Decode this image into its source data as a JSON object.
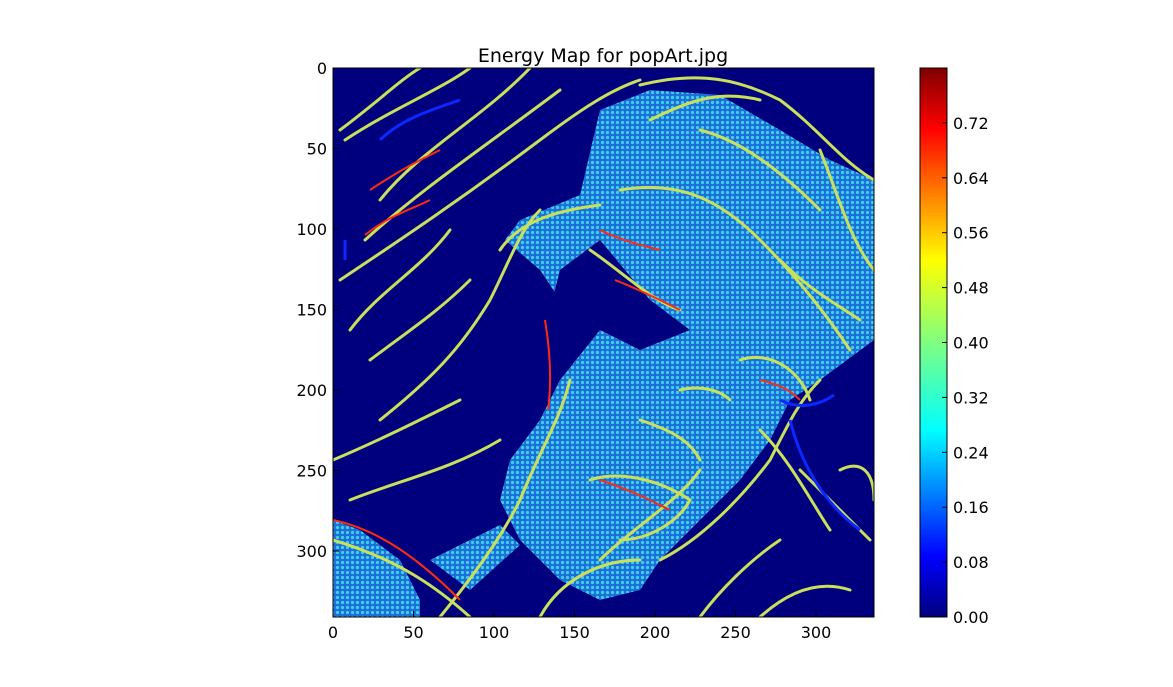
{
  "chart_data": [
    {
      "type": "heatmap",
      "title": "Energy Map for popArt.jpg",
      "xlabel": "",
      "ylabel": "",
      "colormap": "jet",
      "xlim": [
        0,
        336
      ],
      "ylim": [
        341,
        0
      ],
      "x_ticks": [
        0,
        50,
        100,
        150,
        200,
        250,
        300
      ],
      "y_ticks": [
        0,
        50,
        100,
        150,
        200,
        250,
        300
      ],
      "grid": false,
      "notes": "Image shows an energy map of a pop-art portrait (woman's face with flowing hair): dark blue background, yellow-green/red outline contours, cyan/light-blue dotted halftone regions over the face."
    },
    {
      "type": "colorbar",
      "vmin": 0.0,
      "vmax": 0.8,
      "ticks": [
        "0.00",
        "0.08",
        "0.16",
        "0.24",
        "0.32",
        "0.40",
        "0.48",
        "0.56",
        "0.64",
        "0.72"
      ],
      "tick_values": [
        0.0,
        0.08,
        0.16,
        0.24,
        0.32,
        0.4,
        0.48,
        0.56,
        0.64,
        0.72
      ]
    }
  ],
  "colors": {
    "background": "#00007f",
    "outline": "#c8e05a",
    "halftone": "#28aee6",
    "red_line": "#ff2a10",
    "blue_line": "#0a28ff"
  }
}
